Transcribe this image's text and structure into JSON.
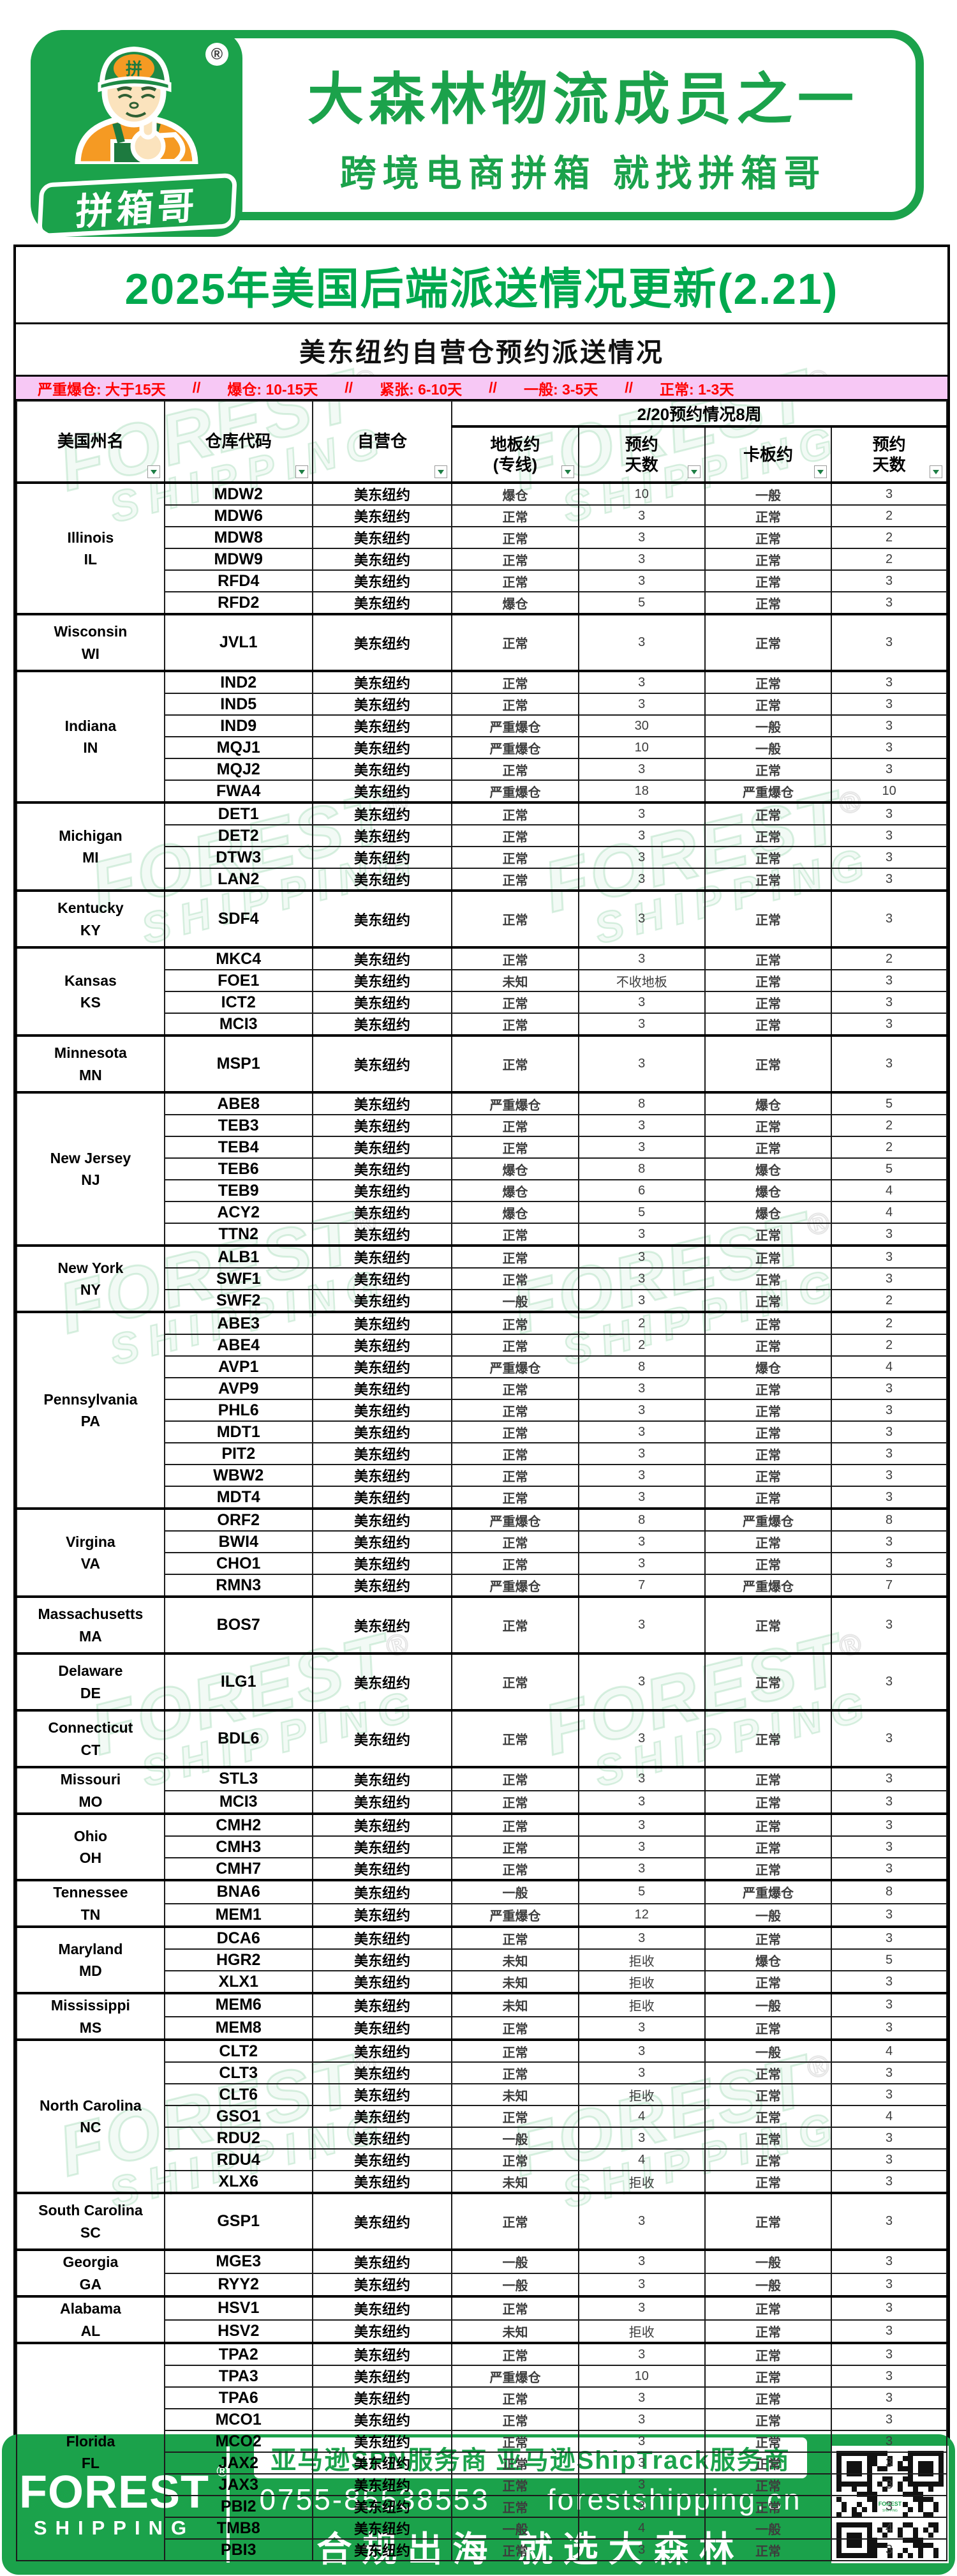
{
  "brand": {
    "line1": "大森林物流成员之一",
    "line2": "跨境电商拼箱 就找拼箱哥",
    "badge_text": "拼箱哥",
    "cap_text": "拼",
    "registered": "®"
  },
  "doc": {
    "title": "2025年美国后端派送情况更新(2.21)",
    "subtitle": "美东纽约自营仓预约派送情况"
  },
  "legend": {
    "separator": "//",
    "items": [
      {
        "label": "严重爆仓",
        "days": "大于15天"
      },
      {
        "label": "爆仓",
        "days": "10-15天"
      },
      {
        "label": "紧张",
        "days": "6-10天"
      },
      {
        "label": "一般",
        "days": "3-5天"
      },
      {
        "label": "正常",
        "days": "1-3天"
      }
    ]
  },
  "table": {
    "group_header": "2/20预约情况8周",
    "columns": [
      {
        "label": "美国州名"
      },
      {
        "label": "仓库代码"
      },
      {
        "label": "自营仓"
      },
      {
        "label": "地板约",
        "sub": "(专线)"
      },
      {
        "label": "预约",
        "sub": "天数"
      },
      {
        "label": "卡板约",
        "sub": ""
      },
      {
        "label": "预约",
        "sub": "天数"
      }
    ],
    "groups": [
      {
        "state": "Illinois",
        "abbr": "IL",
        "rows": [
          [
            "MDW2",
            "美东纽约",
            "爆仓",
            "10",
            "一般",
            "3"
          ],
          [
            "MDW6",
            "美东纽约",
            "正常",
            "3",
            "正常",
            "2"
          ],
          [
            "MDW8",
            "美东纽约",
            "正常",
            "3",
            "正常",
            "2"
          ],
          [
            "MDW9",
            "美东纽约",
            "正常",
            "3",
            "正常",
            "2"
          ],
          [
            "RFD4",
            "美东纽约",
            "正常",
            "3",
            "正常",
            "3"
          ],
          [
            "RFD2",
            "美东纽约",
            "爆仓",
            "5",
            "正常",
            "3"
          ]
        ]
      },
      {
        "state": "Wisconsin",
        "abbr": "WI",
        "rows": [
          [
            "JVL1",
            "美东纽约",
            "正常",
            "3",
            "正常",
            "3"
          ]
        ]
      },
      {
        "state": "Indiana",
        "abbr": "IN",
        "rows": [
          [
            "IND2",
            "美东纽约",
            "正常",
            "3",
            "正常",
            "3"
          ],
          [
            "IND5",
            "美东纽约",
            "正常",
            "3",
            "正常",
            "3"
          ],
          [
            "IND9",
            "美东纽约",
            "严重爆仓",
            "30",
            "一般",
            "3"
          ],
          [
            "MQJ1",
            "美东纽约",
            "严重爆仓",
            "10",
            "一般",
            "3"
          ],
          [
            "MQJ2",
            "美东纽约",
            "正常",
            "3",
            "正常",
            "3"
          ],
          [
            "FWA4",
            "美东纽约",
            "严重爆仓",
            "18",
            "严重爆仓",
            "10"
          ]
        ]
      },
      {
        "state": "Michigan",
        "abbr": "MI",
        "rows": [
          [
            "DET1",
            "美东纽约",
            "正常",
            "3",
            "正常",
            "3"
          ],
          [
            "DET2",
            "美东纽约",
            "正常",
            "3",
            "正常",
            "3"
          ],
          [
            "DTW3",
            "美东纽约",
            "正常",
            "3",
            "正常",
            "3"
          ],
          [
            "LAN2",
            "美东纽约",
            "正常",
            "3",
            "正常",
            "3"
          ]
        ]
      },
      {
        "state": "Kentucky",
        "abbr": "KY",
        "rows": [
          [
            "SDF4",
            "美东纽约",
            "正常",
            "3",
            "正常",
            "3"
          ]
        ]
      },
      {
        "state": "Kansas",
        "abbr": "KS",
        "rows": [
          [
            "MKC4",
            "美东纽约",
            "正常",
            "3",
            "正常",
            "2"
          ],
          [
            "FOE1",
            "美东纽约",
            "未知",
            "不收地板",
            "正常",
            "3"
          ],
          [
            "ICT2",
            "美东纽约",
            "正常",
            "3",
            "正常",
            "3"
          ],
          [
            "MCI3",
            "美东纽约",
            "正常",
            "3",
            "正常",
            "3"
          ]
        ]
      },
      {
        "state": "Minnesota",
        "abbr": "MN",
        "rows": [
          [
            "MSP1",
            "美东纽约",
            "正常",
            "3",
            "正常",
            "3"
          ]
        ]
      },
      {
        "state": "New Jersey",
        "abbr": "NJ",
        "rows": [
          [
            "ABE8",
            "美东纽约",
            "严重爆仓",
            "8",
            "爆仓",
            "5"
          ],
          [
            "TEB3",
            "美东纽约",
            "正常",
            "3",
            "正常",
            "2"
          ],
          [
            "TEB4",
            "美东纽约",
            "正常",
            "3",
            "正常",
            "2"
          ],
          [
            "TEB6",
            "美东纽约",
            "爆仓",
            "8",
            "爆仓",
            "5"
          ],
          [
            "TEB9",
            "美东纽约",
            "爆仓",
            "6",
            "爆仓",
            "4"
          ],
          [
            "ACY2",
            "美东纽约",
            "爆仓",
            "5",
            "爆仓",
            "4"
          ],
          [
            "TTN2",
            "美东纽约",
            "正常",
            "3",
            "正常",
            "3"
          ]
        ]
      },
      {
        "state": "New York",
        "abbr": "NY",
        "rows": [
          [
            "ALB1",
            "美东纽约",
            "正常",
            "3",
            "正常",
            "3"
          ],
          [
            "SWF1",
            "美东纽约",
            "正常",
            "3",
            "正常",
            "3"
          ],
          [
            "SWF2",
            "美东纽约",
            "一般",
            "3",
            "正常",
            "2"
          ]
        ]
      },
      {
        "state": "Pennsylvania",
        "abbr": "PA",
        "rows": [
          [
            "ABE3",
            "美东纽约",
            "正常",
            "2",
            "正常",
            "2"
          ],
          [
            "ABE4",
            "美东纽约",
            "正常",
            "2",
            "正常",
            "2"
          ],
          [
            "AVP1",
            "美东纽约",
            "严重爆仓",
            "8",
            "爆仓",
            "4"
          ],
          [
            "AVP9",
            "美东纽约",
            "正常",
            "3",
            "正常",
            "3"
          ],
          [
            "PHL6",
            "美东纽约",
            "正常",
            "3",
            "正常",
            "3"
          ],
          [
            "MDT1",
            "美东纽约",
            "正常",
            "3",
            "正常",
            "3"
          ],
          [
            "PIT2",
            "美东纽约",
            "正常",
            "3",
            "正常",
            "3"
          ],
          [
            "WBW2",
            "美东纽约",
            "正常",
            "3",
            "正常",
            "3"
          ],
          [
            "MDT4",
            "美东纽约",
            "正常",
            "3",
            "正常",
            "3"
          ]
        ]
      },
      {
        "state": "Virgina",
        "abbr": "VA",
        "rows": [
          [
            "ORF2",
            "美东纽约",
            "严重爆仓",
            "8",
            "严重爆仓",
            "8"
          ],
          [
            "BWI4",
            "美东纽约",
            "正常",
            "3",
            "正常",
            "3"
          ],
          [
            "CHO1",
            "美东纽约",
            "正常",
            "3",
            "正常",
            "3"
          ],
          [
            "RMN3",
            "美东纽约",
            "严重爆仓",
            "7",
            "严重爆仓",
            "7"
          ]
        ]
      },
      {
        "state": "Massachusetts",
        "abbr": "MA",
        "rows": [
          [
            "BOS7",
            "美东纽约",
            "正常",
            "3",
            "正常",
            "3"
          ]
        ]
      },
      {
        "state": "Delaware",
        "abbr": "DE",
        "rows": [
          [
            "ILG1",
            "美东纽约",
            "正常",
            "3",
            "正常",
            "3"
          ]
        ]
      },
      {
        "state": "Connecticut",
        "abbr": "CT",
        "rows": [
          [
            "BDL6",
            "美东纽约",
            "正常",
            "3",
            "正常",
            "3"
          ]
        ]
      },
      {
        "state": "Missouri",
        "abbr": "MO",
        "rows": [
          [
            "STL3",
            "美东纽约",
            "正常",
            "3",
            "正常",
            "3"
          ],
          [
            "MCI3",
            "美东纽约",
            "正常",
            "3",
            "正常",
            "3"
          ]
        ]
      },
      {
        "state": "Ohio",
        "abbr": "OH",
        "rows": [
          [
            "CMH2",
            "美东纽约",
            "正常",
            "3",
            "正常",
            "3"
          ],
          [
            "CMH3",
            "美东纽约",
            "正常",
            "3",
            "正常",
            "3"
          ],
          [
            "CMH7",
            "美东纽约",
            "正常",
            "3",
            "正常",
            "3"
          ]
        ]
      },
      {
        "state": "Tennessee",
        "abbr": "TN",
        "rows": [
          [
            "BNA6",
            "美东纽约",
            "一般",
            "5",
            "严重爆仓",
            "8"
          ],
          [
            "MEM1",
            "美东纽约",
            "严重爆仓",
            "12",
            "一般",
            "3"
          ]
        ]
      },
      {
        "state": "Maryland",
        "abbr": "MD",
        "rows": [
          [
            "DCA6",
            "美东纽约",
            "正常",
            "3",
            "正常",
            "3"
          ],
          [
            "HGR2",
            "美东纽约",
            "未知",
            "拒收",
            "爆仓",
            "5"
          ],
          [
            "XLX1",
            "美东纽约",
            "未知",
            "拒收",
            "正常",
            "3"
          ]
        ]
      },
      {
        "state": "Mississippi",
        "abbr": "MS",
        "rows": [
          [
            "MEM6",
            "美东纽约",
            "未知",
            "拒收",
            "一般",
            "3"
          ],
          [
            "MEM8",
            "美东纽约",
            "正常",
            "3",
            "正常",
            "3"
          ]
        ]
      },
      {
        "state": "North Carolina",
        "abbr": "NC",
        "rows": [
          [
            "CLT2",
            "美东纽约",
            "正常",
            "3",
            "一般",
            "4"
          ],
          [
            "CLT3",
            "美东纽约",
            "正常",
            "3",
            "正常",
            "3"
          ],
          [
            "CLT6",
            "美东纽约",
            "未知",
            "拒收",
            "正常",
            "3"
          ],
          [
            "GSO1",
            "美东纽约",
            "正常",
            "4",
            "正常",
            "4"
          ],
          [
            "RDU2",
            "美东纽约",
            "一般",
            "3",
            "正常",
            "3"
          ],
          [
            "RDU4",
            "美东纽约",
            "正常",
            "4",
            "正常",
            "3"
          ],
          [
            "XLX6",
            "美东纽约",
            "未知",
            "拒收",
            "正常",
            "3"
          ]
        ]
      },
      {
        "state": "South Carolina",
        "abbr": "SC",
        "rows": [
          [
            "GSP1",
            "美东纽约",
            "正常",
            "3",
            "正常",
            "3"
          ]
        ]
      },
      {
        "state": "Georgia",
        "abbr": "GA",
        "rows": [
          [
            "MGE3",
            "美东纽约",
            "一般",
            "3",
            "一般",
            "3"
          ],
          [
            "RYY2",
            "美东纽约",
            "一般",
            "3",
            "一般",
            "3"
          ]
        ]
      },
      {
        "state": "Alabama",
        "abbr": "AL",
        "rows": [
          [
            "HSV1",
            "美东纽约",
            "正常",
            "3",
            "正常",
            "3"
          ],
          [
            "HSV2",
            "美东纽约",
            "未知",
            "拒收",
            "正常",
            "3"
          ]
        ]
      },
      {
        "state": "Florida",
        "abbr": "FL",
        "rows": [
          [
            "TPA2",
            "美东纽约",
            "正常",
            "3",
            "正常",
            "3"
          ],
          [
            "TPA3",
            "美东纽约",
            "严重爆仓",
            "10",
            "正常",
            "3"
          ],
          [
            "TPA6",
            "美东纽约",
            "正常",
            "3",
            "正常",
            "3"
          ],
          [
            "MCO1",
            "美东纽约",
            "正常",
            "3",
            "正常",
            "3"
          ],
          [
            "MCO2",
            "美东纽约",
            "正常",
            "3",
            "正常",
            "3"
          ],
          [
            "JAX2",
            "美东纽约",
            "正常",
            "3",
            "正常",
            "3"
          ],
          [
            "JAX3",
            "美东纽约",
            "正常",
            "3",
            "正常",
            "3"
          ],
          [
            "PBI2",
            "美东纽约",
            "正常",
            "3",
            "正常",
            "3"
          ],
          [
            "TMB8",
            "美东纽约",
            "一般",
            "4",
            "一般",
            "4"
          ],
          [
            "PBI3",
            "美东纽约",
            "正常",
            "3",
            "正常",
            "3"
          ]
        ]
      }
    ]
  },
  "watermark": {
    "line1": "FOREST",
    "line2": "SHIPPING",
    "registered": "®"
  },
  "footer": {
    "logo1": "FOREST",
    "logo2": "SHIPPING",
    "registered": "®",
    "badge": "亚马逊SPN服务商  亚马逊ShipTrack服务商",
    "phone": "0755-85538553",
    "site": "forestshipping.cn",
    "slogan": "合规出海  就选大森林"
  },
  "colors": {
    "brand_green": "#1ba24b",
    "title_green": "#00a94e",
    "legend_bg": "#f7c8f5",
    "legend_red": "#ff0000"
  }
}
